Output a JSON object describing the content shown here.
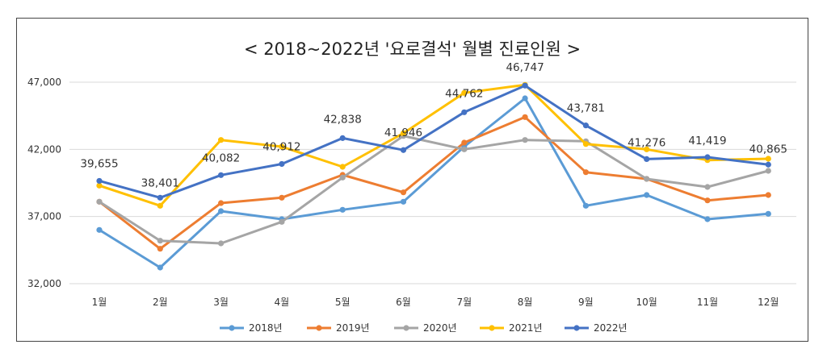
{
  "chart_data": {
    "type": "line",
    "title": "< 2018~2022년 '요로결석' 월별 진료인원 >",
    "xlabel": "",
    "ylabel": "",
    "categories": [
      "1월",
      "2월",
      "3월",
      "4월",
      "5월",
      "6월",
      "7월",
      "8월",
      "9월",
      "10월",
      "11월",
      "12월"
    ],
    "ylim": [
      32000,
      47000
    ],
    "yticks": [
      32000,
      37000,
      42000,
      47000
    ],
    "ytick_labels": [
      "32,000",
      "37,000",
      "42,000",
      "47,000"
    ],
    "grid": true,
    "legend_position": "bottom",
    "series": [
      {
        "name": "2018년",
        "color": "#5B9BD5",
        "values": [
          36000,
          33200,
          37400,
          36800,
          37500,
          38100,
          42200,
          45800,
          37800,
          38600,
          36800,
          37200
        ]
      },
      {
        "name": "2019년",
        "color": "#ED7D31",
        "values": [
          38100,
          34600,
          38000,
          38400,
          40100,
          38800,
          42500,
          44400,
          40300,
          39800,
          38200,
          38600
        ]
      },
      {
        "name": "2020년",
        "color": "#A5A5A5",
        "values": [
          38100,
          35200,
          35000,
          36600,
          39900,
          43000,
          42000,
          42700,
          42600,
          39800,
          39200,
          40400
        ]
      },
      {
        "name": "2021년",
        "color": "#FFC000",
        "values": [
          39300,
          37800,
          42700,
          42200,
          40700,
          43200,
          46200,
          46800,
          42400,
          42000,
          41200,
          41300
        ]
      },
      {
        "name": "2022년",
        "color": "#4472C4",
        "values": [
          39655,
          38401,
          40082,
          40912,
          42838,
          41946,
          44762,
          46747,
          43781,
          41276,
          41419,
          40865
        ],
        "data_labels": [
          "39,655",
          "38,401",
          "40,082",
          "40,912",
          "42,838",
          "41,946",
          "44,762",
          "46,747",
          "43,781",
          "41,276",
          "41,419",
          "40,865"
        ]
      }
    ]
  }
}
